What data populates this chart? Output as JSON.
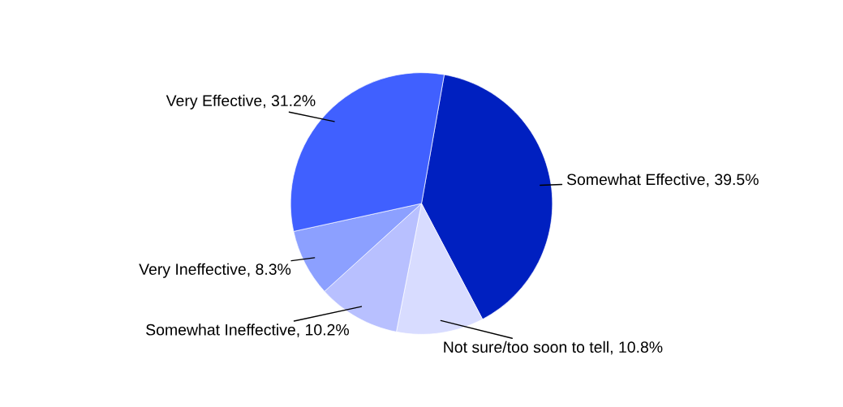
{
  "chart_data": {
    "type": "pie",
    "categories": [
      "Somewhat Effective",
      "Not sure/too soon to tell",
      "Somewhat Ineffective",
      "Very Ineffective",
      "Very Effective"
    ],
    "values": [
      39.5,
      10.8,
      10.2,
      8.3,
      31.2
    ],
    "value_labels": [
      "39.5%",
      "10.8%",
      "10.2%",
      "8.3%",
      "31.2%"
    ],
    "colors": [
      "#0020c0",
      "#d8dcff",
      "#b8c0ff",
      "#8ca0ff",
      "#4060ff"
    ],
    "legend": false
  }
}
